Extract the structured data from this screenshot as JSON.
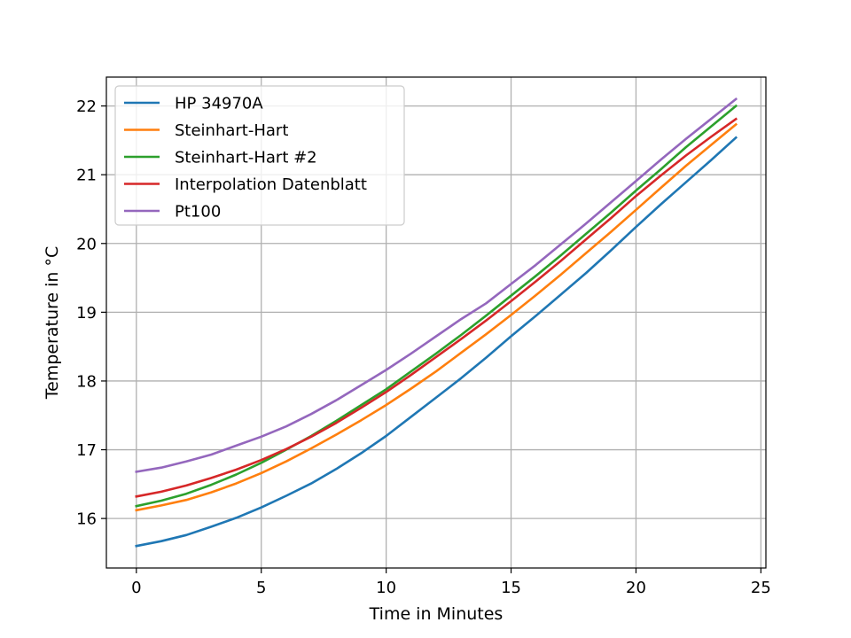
{
  "chart_data": {
    "type": "line",
    "title": "",
    "xlabel": "Time in Minutes",
    "ylabel": "Temperature in °C",
    "xlim": [
      -1.2,
      25.2
    ],
    "ylim": [
      15.28,
      22.42
    ],
    "xticks": [
      0,
      5,
      10,
      15,
      20,
      25
    ],
    "yticks": [
      16,
      17,
      18,
      19,
      20,
      21,
      22
    ],
    "grid": true,
    "legend_position": "top-left",
    "x": [
      0,
      1,
      2,
      3,
      4,
      5,
      6,
      7,
      8,
      9,
      10,
      11,
      12,
      13,
      14,
      15,
      16,
      17,
      18,
      19,
      20,
      21,
      22,
      23,
      24
    ],
    "series": [
      {
        "name": "HP 34970A",
        "color": "#1f77b4",
        "values": [
          15.6,
          15.67,
          15.76,
          15.88,
          16.01,
          16.16,
          16.33,
          16.51,
          16.72,
          16.95,
          17.2,
          17.48,
          17.76,
          18.04,
          18.34,
          18.65,
          18.95,
          19.26,
          19.57,
          19.9,
          20.24,
          20.57,
          20.89,
          21.21,
          21.54
        ]
      },
      {
        "name": "Steinhart-Hart",
        "color": "#ff7f0e",
        "values": [
          16.12,
          16.19,
          16.27,
          16.38,
          16.51,
          16.66,
          16.83,
          17.02,
          17.22,
          17.43,
          17.65,
          17.89,
          18.14,
          18.41,
          18.68,
          18.96,
          19.25,
          19.55,
          19.86,
          20.17,
          20.49,
          20.81,
          21.13,
          21.43,
          21.73
        ]
      },
      {
        "name": "Steinhart-Hart #2",
        "color": "#2ca02c",
        "values": [
          16.18,
          16.26,
          16.36,
          16.49,
          16.64,
          16.81,
          17.0,
          17.2,
          17.42,
          17.65,
          17.88,
          18.14,
          18.4,
          18.67,
          18.95,
          19.24,
          19.53,
          19.83,
          20.14,
          20.45,
          20.77,
          21.08,
          21.4,
          21.7,
          22.0
        ]
      },
      {
        "name": "Interpolation Datenblatt",
        "color": "#d62728",
        "values": [
          16.32,
          16.39,
          16.48,
          16.59,
          16.71,
          16.85,
          17.01,
          17.19,
          17.39,
          17.61,
          17.84,
          18.09,
          18.35,
          18.61,
          18.88,
          19.16,
          19.45,
          19.75,
          20.06,
          20.37,
          20.69,
          20.99,
          21.28,
          21.55,
          21.81
        ]
      },
      {
        "name": "Pt100",
        "color": "#9467bd",
        "values": [
          16.68,
          16.74,
          16.83,
          16.93,
          17.06,
          17.19,
          17.34,
          17.52,
          17.72,
          17.94,
          18.16,
          18.4,
          18.65,
          18.9,
          19.13,
          19.41,
          19.69,
          19.99,
          20.29,
          20.6,
          20.91,
          21.22,
          21.52,
          21.81,
          22.1
        ]
      }
    ]
  }
}
